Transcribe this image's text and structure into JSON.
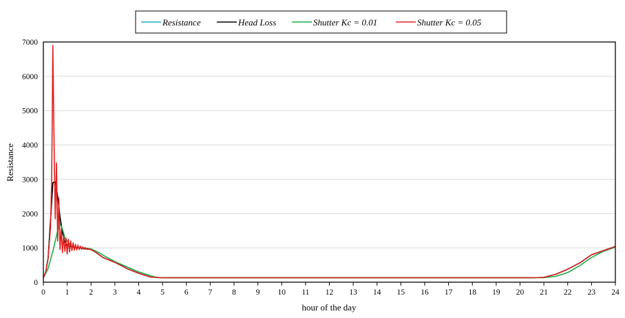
{
  "chart_data": {
    "type": "line",
    "title": "",
    "xlabel": "hour of the day",
    "ylabel": "Resistance",
    "xlim": [
      0,
      24
    ],
    "ylim": [
      0,
      7000
    ],
    "x_ticks": [
      0,
      1,
      2,
      3,
      4,
      5,
      6,
      7,
      8,
      9,
      10,
      11,
      12,
      13,
      14,
      15,
      16,
      17,
      18,
      19,
      20,
      21,
      22,
      23,
      24
    ],
    "y_ticks": [
      0,
      1000,
      2000,
      3000,
      4000,
      5000,
      6000,
      7000
    ],
    "grid": "horizontal",
    "legend_position": "top",
    "series": [
      {
        "name": "Resistance",
        "color": "#1fb1c9",
        "x": [
          0,
          0.1,
          0.2,
          0.3,
          0.4,
          0.5,
          0.6,
          0.7,
          0.8,
          0.9,
          1,
          1.2,
          1.4,
          1.6,
          1.8,
          2,
          2.2,
          2.5,
          3,
          3.5,
          4,
          4.5,
          5,
          6,
          8,
          10,
          12,
          14,
          16,
          18,
          20,
          20.5,
          21,
          21.5,
          22,
          22.5,
          23,
          23.5,
          24
        ],
        "y": [
          130,
          300,
          700,
          1800,
          2900,
          2900,
          2500,
          1900,
          1450,
          1180,
          1080,
          1030,
          1010,
          990,
          970,
          950,
          870,
          720,
          580,
          400,
          260,
          150,
          130,
          130,
          130,
          130,
          130,
          130,
          130,
          130,
          130,
          130,
          140,
          230,
          380,
          560,
          800,
          920,
          1040
        ]
      },
      {
        "name": "Head Loss",
        "color": "#000000",
        "x": [
          0,
          0.1,
          0.2,
          0.3,
          0.4,
          0.5,
          0.6,
          0.7,
          0.8,
          0.9,
          1,
          1.2,
          1.4,
          1.6,
          1.8,
          2,
          2.2,
          2.5,
          3,
          3.5,
          4,
          4.5,
          5,
          6,
          8,
          10,
          12,
          14,
          16,
          18,
          20,
          20.5,
          21,
          21.5,
          22,
          22.5,
          23,
          23.5,
          24
        ],
        "y": [
          130,
          300,
          700,
          1800,
          2900,
          2930,
          2500,
          1900,
          1450,
          1180,
          1080,
          1030,
          1010,
          990,
          970,
          950,
          870,
          720,
          580,
          400,
          260,
          150,
          130,
          130,
          130,
          130,
          130,
          130,
          130,
          130,
          130,
          130,
          140,
          230,
          380,
          560,
          800,
          920,
          1040
        ]
      },
      {
        "name": "Shutter Kc = 0.01",
        "color": "#1aab47",
        "x": [
          0,
          0.2,
          0.4,
          0.6,
          0.7,
          0.8,
          0.9,
          1,
          1.2,
          1.4,
          1.6,
          1.8,
          2,
          2.3,
          2.6,
          3,
          3.5,
          4,
          4.5,
          4.8,
          5,
          6,
          8,
          10,
          12,
          14,
          16,
          18,
          20,
          20.5,
          21,
          21.5,
          22,
          22.5,
          23,
          23.5,
          24
        ],
        "y": [
          130,
          400,
          900,
          1500,
          1700,
          1550,
          1300,
          1200,
          1050,
          1000,
          1000,
          990,
          970,
          870,
          750,
          600,
          450,
          300,
          190,
          130,
          130,
          130,
          130,
          130,
          130,
          130,
          130,
          130,
          130,
          130,
          130,
          170,
          280,
          480,
          720,
          900,
          1020
        ]
      },
      {
        "name": "Shutter Kc = 0.05",
        "color": "#e02020",
        "x": [
          0,
          0.1,
          0.2,
          0.3,
          0.35,
          0.4,
          0.45,
          0.5,
          0.55,
          0.6,
          0.65,
          0.7,
          0.75,
          0.8,
          0.85,
          0.9,
          0.95,
          1,
          1.05,
          1.1,
          1.15,
          1.2,
          1.25,
          1.3,
          1.35,
          1.4,
          1.45,
          1.5,
          1.55,
          1.6,
          1.65,
          1.7,
          1.75,
          1.8,
          1.85,
          1.9,
          2,
          2.2,
          2.5,
          3,
          3.5,
          4,
          4.5,
          5,
          6,
          8,
          10,
          12,
          14,
          16,
          18,
          20,
          20.5,
          21,
          21.5,
          22,
          22.5,
          23,
          23.5,
          24
        ],
        "y": [
          130,
          300,
          700,
          1600,
          3000,
          6900,
          4000,
          1850,
          3480,
          1200,
          2450,
          950,
          1550,
          860,
          1350,
          900,
          1280,
          820,
          1250,
          880,
          1200,
          920,
          1150,
          930,
          1100,
          940,
          1080,
          950,
          1050,
          960,
          1030,
          960,
          1010,
          960,
          990,
          960,
          950,
          870,
          720,
          580,
          400,
          260,
          150,
          130,
          130,
          130,
          130,
          130,
          130,
          130,
          130,
          130,
          130,
          140,
          230,
          380,
          560,
          800,
          920,
          1040
        ]
      }
    ]
  }
}
